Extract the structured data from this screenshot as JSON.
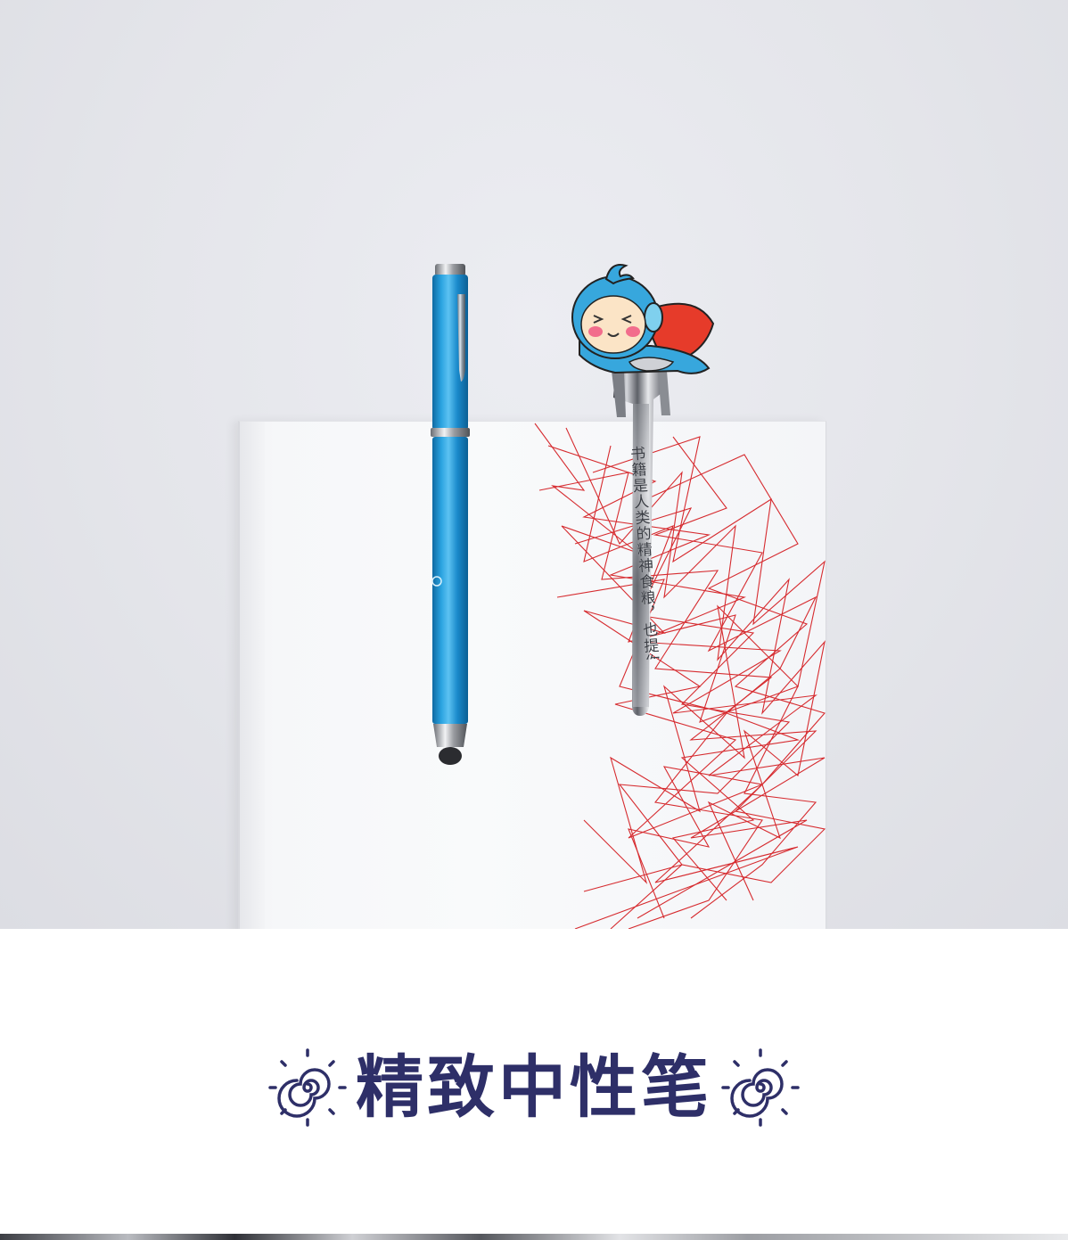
{
  "photo": {
    "engraving_text": "书籍是人类的精神食粮，也提你这么胖~",
    "pattern_color": "#d62b2f",
    "pen_color": "#1e8fcc",
    "mascot_color": "#37a7dd",
    "cape_color": "#e63b2a"
  },
  "heading": {
    "title": "精致中性笔",
    "text_color": "#2e2f68",
    "left_icon": "swirl-icon",
    "right_icon": "swirl-icon"
  }
}
